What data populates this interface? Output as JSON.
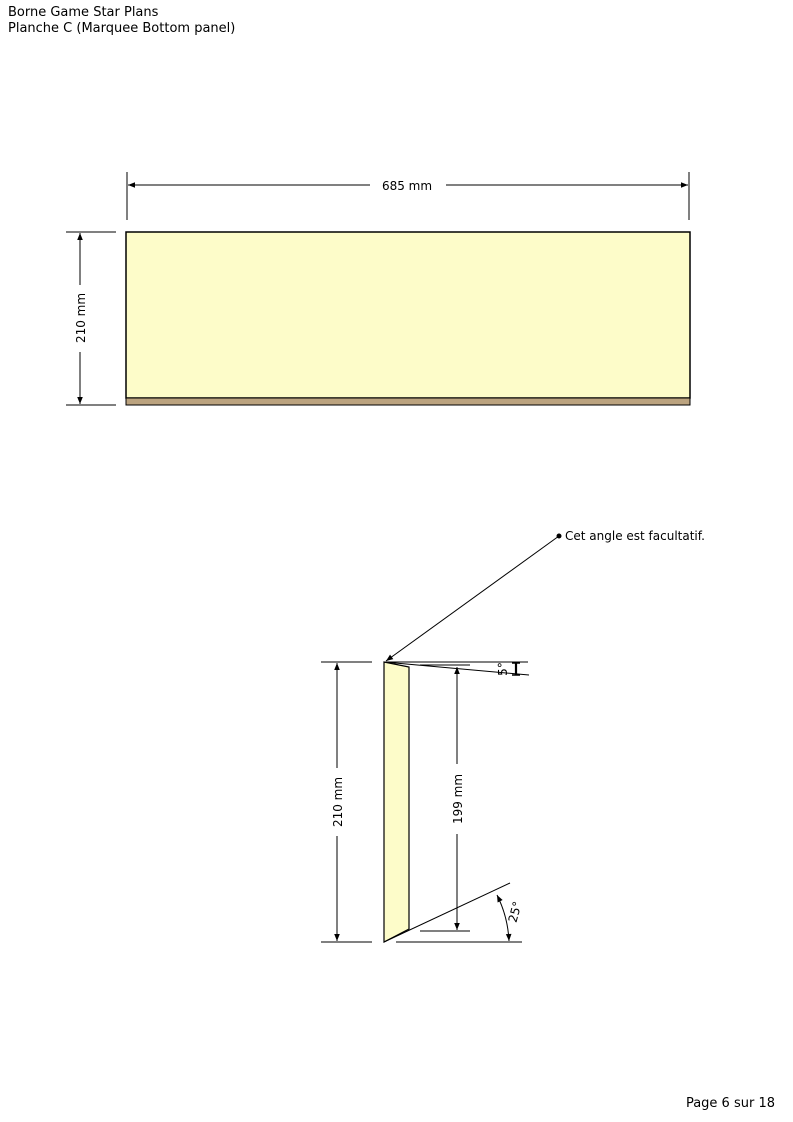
{
  "header": {
    "title": "Borne Game Star Plans",
    "subtitle": "Planche C (Marquee Bottom panel)"
  },
  "front_view": {
    "width_label": "685 mm",
    "height_label": "210 mm"
  },
  "side_view": {
    "height_label": "210 mm",
    "inner_height_label": "199 mm",
    "top_angle_label": "5°",
    "bottom_angle_label": "25°",
    "annotation": "Cet angle est facultatif."
  },
  "footer": {
    "page_label": "Page 6 sur 18"
  },
  "colors": {
    "panel_fill": "#fdfcc9",
    "edge_fill": "#bba37f",
    "line": "#000000"
  }
}
